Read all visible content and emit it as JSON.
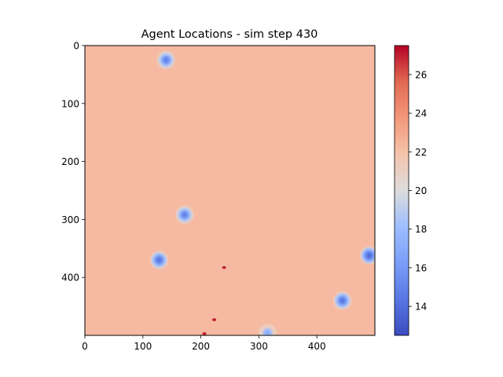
{
  "chart_data": {
    "type": "heatmap",
    "title": "Agent Locations - sim step 430",
    "xlabel": "",
    "ylabel": "",
    "grid_size": [
      500,
      500
    ],
    "xlim": [
      0,
      500
    ],
    "ylim": [
      500,
      0
    ],
    "x_ticks": [
      0,
      100,
      200,
      300,
      400
    ],
    "y_ticks": [
      0,
      100,
      200,
      300,
      400
    ],
    "background_value": 22.3,
    "colormap": "coolwarm",
    "colorbar": {
      "range": [
        12.5,
        27.5
      ],
      "ticks": [
        14,
        16,
        18,
        20,
        22,
        24,
        26
      ]
    },
    "cold_spots": [
      {
        "x": 140,
        "y": 25,
        "value": 14.5
      },
      {
        "x": 172,
        "y": 292,
        "value": 14.5
      },
      {
        "x": 128,
        "y": 370,
        "value": 14.0
      },
      {
        "x": 490,
        "y": 362,
        "value": 13.5
      },
      {
        "x": 444,
        "y": 440,
        "value": 14.0
      },
      {
        "x": 315,
        "y": 496,
        "value": 16.5
      }
    ],
    "hot_spots": [
      {
        "x": 240,
        "y": 383,
        "value": 27.0
      },
      {
        "x": 223,
        "y": 473,
        "value": 27.0
      },
      {
        "x": 206,
        "y": 497,
        "value": 27.0
      }
    ]
  }
}
